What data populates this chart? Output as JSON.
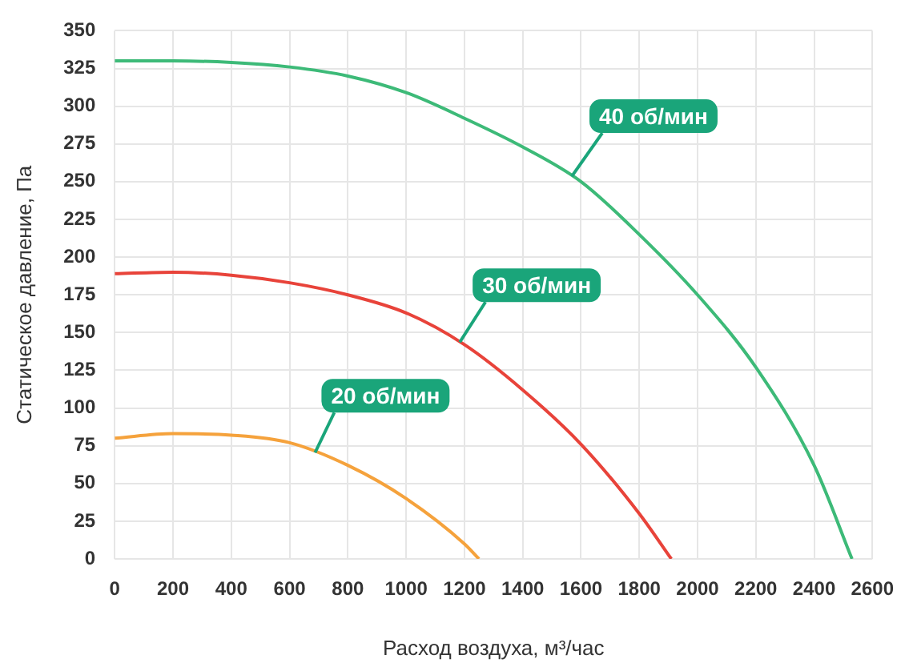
{
  "chart_data": {
    "type": "line",
    "xlabel": "Расход воздуха, м³/час",
    "ylabel": "Статическое давление, Па",
    "xlim": [
      0,
      2600
    ],
    "xticks": [
      0,
      200,
      400,
      600,
      800,
      1000,
      1200,
      1400,
      1600,
      1800,
      2000,
      2200,
      2400,
      2600
    ],
    "ylim": [
      0,
      350
    ],
    "yticks": [
      0,
      25,
      50,
      75,
      100,
      125,
      150,
      175,
      200,
      225,
      250,
      275,
      300,
      325,
      350
    ],
    "grid": true,
    "legend": false,
    "marker": "none",
    "line_style": "solid",
    "series": [
      {
        "name": "40 об/мин",
        "color": "#3dba78",
        "x": [
          0,
          200,
          400,
          600,
          800,
          1000,
          1200,
          1400,
          1600,
          1800,
          2000,
          2200,
          2400,
          2530
        ],
        "values": [
          330,
          330,
          329,
          326,
          320,
          309,
          292,
          273,
          250,
          215,
          175,
          127,
          62,
          0
        ]
      },
      {
        "name": "30 об/мин",
        "color": "#e8433a",
        "x": [
          0,
          200,
          400,
          600,
          800,
          1000,
          1200,
          1400,
          1600,
          1800,
          1910
        ],
        "values": [
          189,
          190,
          188,
          183,
          175,
          163,
          142,
          112,
          76,
          30,
          0
        ]
      },
      {
        "name": "20 об/мин",
        "color": "#f5a23c",
        "x": [
          0,
          200,
          400,
          600,
          800,
          1000,
          1200,
          1250
        ],
        "values": [
          80,
          83,
          82,
          77,
          62,
          40,
          10,
          0
        ]
      }
    ]
  }
}
